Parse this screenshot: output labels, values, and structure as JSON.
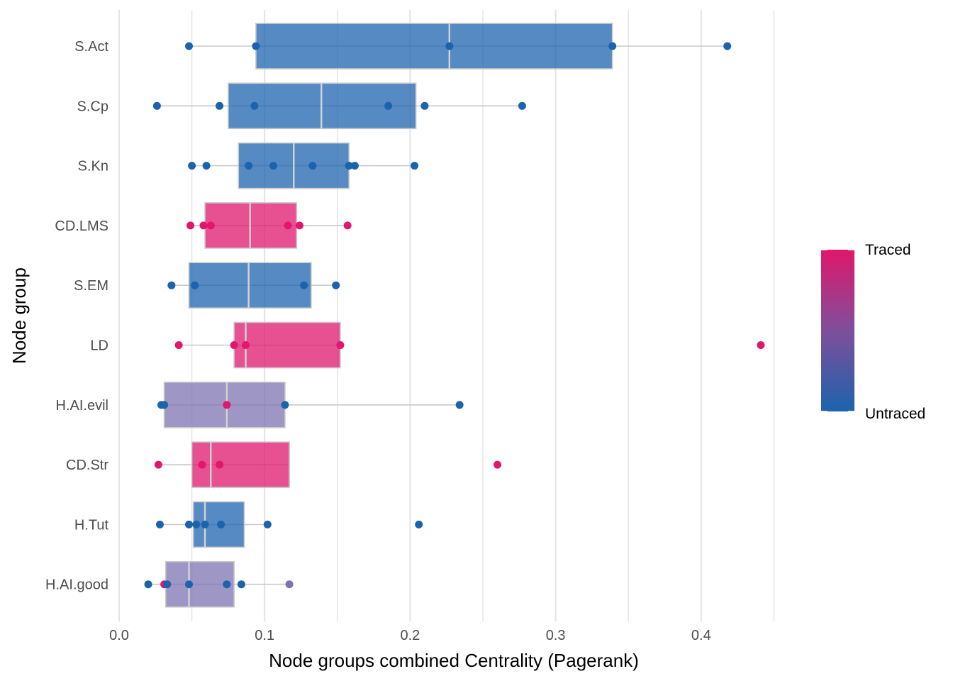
{
  "chart_data": {
    "type": "boxplot",
    "xlabel": "Node groups combined Centrality (Pagerank)",
    "ylabel": "Node group",
    "xlim": [
      0,
      0.45
    ],
    "x_ticks": [
      "0.0",
      "0.1",
      "0.2",
      "0.3",
      "0.4"
    ],
    "grid": "vertical",
    "legend": {
      "position": "right",
      "type": "color-gradient",
      "high_label": "Traced",
      "low_label": "Untraced",
      "high_color": "#e0176c",
      "low_color": "#1c63ad"
    },
    "colors": {
      "traced": "#e0176c",
      "untraced": "#1c63ad",
      "mixed": "#7e73b0"
    },
    "groups": [
      {
        "name": "S.Act",
        "box": {
          "q1": 0.094,
          "median": 0.227,
          "q3": 0.339
        },
        "whisker": [
          0.048,
          0.418
        ],
        "fill": "untraced",
        "points": [
          {
            "x": 0.048,
            "c": "untraced"
          },
          {
            "x": 0.094,
            "c": "untraced"
          },
          {
            "x": 0.227,
            "c": "untraced"
          },
          {
            "x": 0.339,
            "c": "untraced"
          },
          {
            "x": 0.418,
            "c": "untraced"
          }
        ]
      },
      {
        "name": "S.Cp",
        "box": {
          "q1": 0.075,
          "median": 0.139,
          "q3": 0.204
        },
        "whisker": [
          0.026,
          0.277
        ],
        "fill": "untraced",
        "points": [
          {
            "x": 0.026,
            "c": "untraced"
          },
          {
            "x": 0.069,
            "c": "untraced"
          },
          {
            "x": 0.093,
            "c": "untraced"
          },
          {
            "x": 0.185,
            "c": "untraced"
          },
          {
            "x": 0.21,
            "c": "untraced"
          },
          {
            "x": 0.277,
            "c": "untraced"
          }
        ]
      },
      {
        "name": "S.Kn",
        "box": {
          "q1": 0.082,
          "median": 0.12,
          "q3": 0.158
        },
        "whisker": [
          0.05,
          0.203
        ],
        "fill": "untraced",
        "points": [
          {
            "x": 0.05,
            "c": "untraced"
          },
          {
            "x": 0.06,
            "c": "untraced"
          },
          {
            "x": 0.089,
            "c": "untraced"
          },
          {
            "x": 0.106,
            "c": "untraced"
          },
          {
            "x": 0.133,
            "c": "untraced"
          },
          {
            "x": 0.158,
            "c": "untraced"
          },
          {
            "x": 0.162,
            "c": "untraced"
          },
          {
            "x": 0.203,
            "c": "untraced"
          }
        ]
      },
      {
        "name": "CD.LMS",
        "box": {
          "q1": 0.059,
          "median": 0.09,
          "q3": 0.122
        },
        "whisker": [
          0.049,
          0.157
        ],
        "fill": "traced",
        "points": [
          {
            "x": 0.049,
            "c": "traced"
          },
          {
            "x": 0.058,
            "c": "traced"
          },
          {
            "x": 0.063,
            "c": "traced"
          },
          {
            "x": 0.116,
            "c": "traced"
          },
          {
            "x": 0.124,
            "c": "traced"
          },
          {
            "x": 0.157,
            "c": "traced"
          }
        ]
      },
      {
        "name": "S.EM",
        "box": {
          "q1": 0.048,
          "median": 0.089,
          "q3": 0.132
        },
        "whisker": [
          0.036,
          0.149
        ],
        "fill": "untraced",
        "points": [
          {
            "x": 0.036,
            "c": "untraced"
          },
          {
            "x": 0.052,
            "c": "untraced"
          },
          {
            "x": 0.127,
            "c": "untraced"
          },
          {
            "x": 0.149,
            "c": "untraced"
          }
        ]
      },
      {
        "name": "LD",
        "box": {
          "q1": 0.079,
          "median": 0.087,
          "q3": 0.152
        },
        "whisker": [
          0.041,
          0.152
        ],
        "fill": "traced",
        "points": [
          {
            "x": 0.041,
            "c": "traced"
          },
          {
            "x": 0.079,
            "c": "traced"
          },
          {
            "x": 0.087,
            "c": "traced"
          },
          {
            "x": 0.152,
            "c": "traced"
          },
          {
            "x": 0.441,
            "c": "traced"
          }
        ]
      },
      {
        "name": "H.AI.evil",
        "box": {
          "q1": 0.031,
          "median": 0.074,
          "q3": 0.114
        },
        "whisker": [
          0.029,
          0.234
        ],
        "fill": "mixed",
        "points": [
          {
            "x": 0.029,
            "c": "untraced"
          },
          {
            "x": 0.031,
            "c": "untraced"
          },
          {
            "x": 0.074,
            "c": "traced"
          },
          {
            "x": 0.114,
            "c": "untraced"
          },
          {
            "x": 0.234,
            "c": "untraced"
          }
        ]
      },
      {
        "name": "CD.Str",
        "box": {
          "q1": 0.05,
          "median": 0.063,
          "q3": 0.117
        },
        "whisker": [
          0.027,
          0.117
        ],
        "fill": "traced",
        "points": [
          {
            "x": 0.027,
            "c": "traced"
          },
          {
            "x": 0.057,
            "c": "traced"
          },
          {
            "x": 0.069,
            "c": "traced"
          },
          {
            "x": 0.26,
            "c": "traced"
          }
        ]
      },
      {
        "name": "H.Tut",
        "box": {
          "q1": 0.051,
          "median": 0.059,
          "q3": 0.086
        },
        "whisker": [
          0.028,
          0.102
        ],
        "fill": "untraced",
        "points": [
          {
            "x": 0.028,
            "c": "untraced"
          },
          {
            "x": 0.048,
            "c": "untraced"
          },
          {
            "x": 0.053,
            "c": "untraced"
          },
          {
            "x": 0.059,
            "c": "untraced"
          },
          {
            "x": 0.07,
            "c": "untraced"
          },
          {
            "x": 0.102,
            "c": "untraced"
          },
          {
            "x": 0.206,
            "c": "untraced"
          }
        ]
      },
      {
        "name": "H.AI.good",
        "box": {
          "q1": 0.032,
          "median": 0.048,
          "q3": 0.079
        },
        "whisker": [
          0.02,
          0.117
        ],
        "fill": "mixed",
        "points": [
          {
            "x": 0.02,
            "c": "untraced"
          },
          {
            "x": 0.031,
            "c": "traced"
          },
          {
            "x": 0.033,
            "c": "untraced"
          },
          {
            "x": 0.048,
            "c": "untraced"
          },
          {
            "x": 0.074,
            "c": "untraced"
          },
          {
            "x": 0.084,
            "c": "untraced"
          },
          {
            "x": 0.117,
            "c": "mixed"
          }
        ]
      }
    ]
  }
}
